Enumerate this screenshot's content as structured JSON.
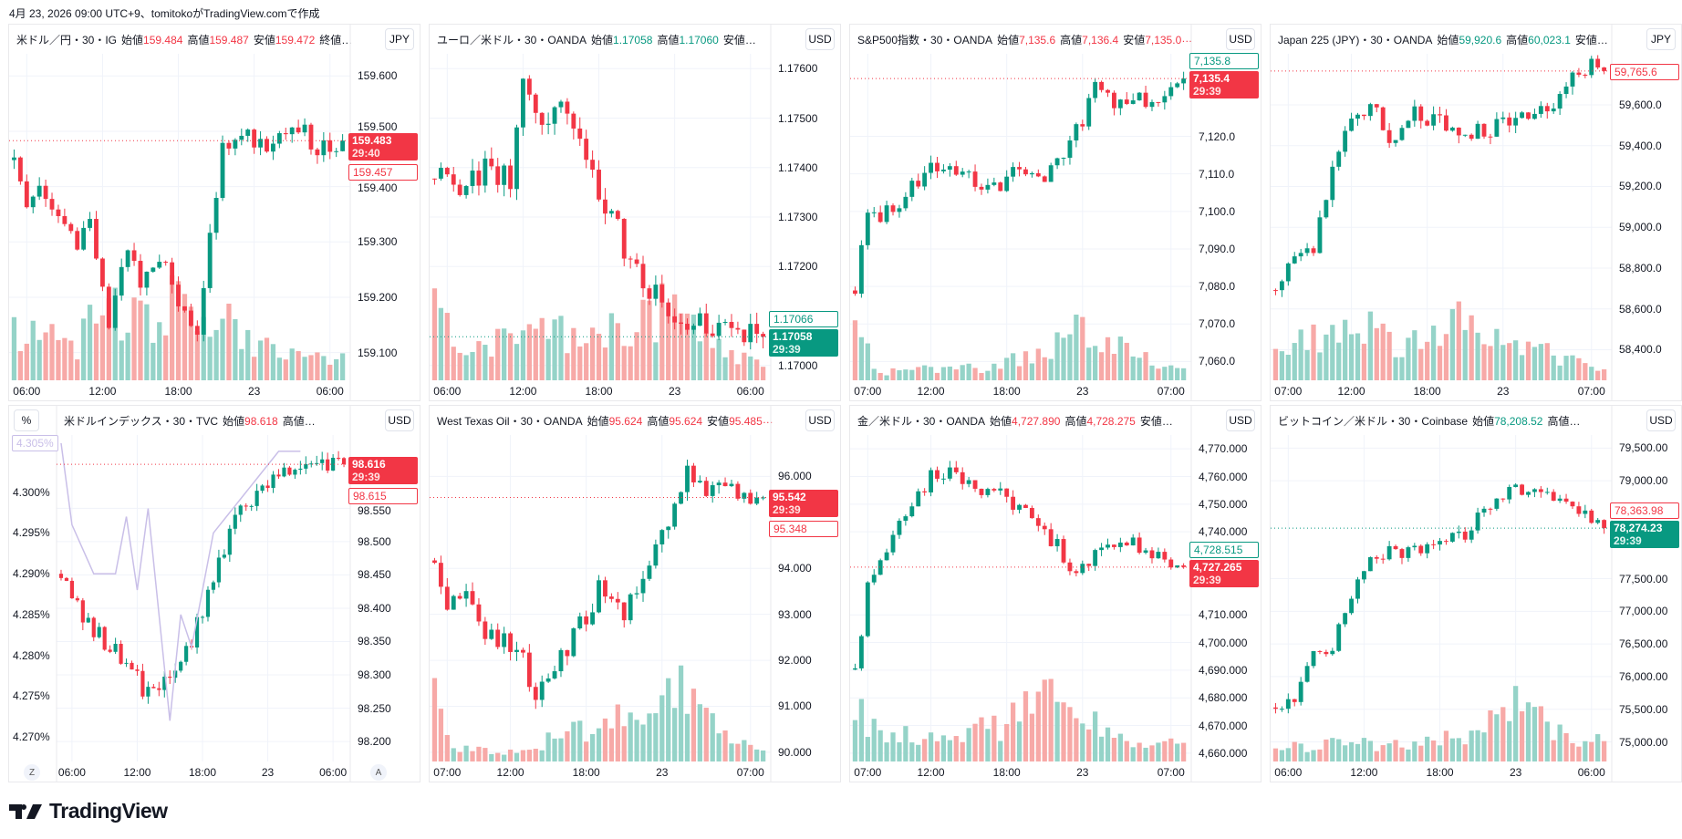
{
  "caption": "4月 23, 2026 09:00 UTC+9、tomitokoがTradingView.comで作成",
  "brand": "TradingView",
  "colors": {
    "up": "#089981",
    "down": "#F23645",
    "up_vol": "#95d3c8",
    "down_vol": "#f7a9a7",
    "pct_line": "#c9bfe8"
  },
  "charts": [
    {
      "title": "米ドル／円・30・IG",
      "ohlc": [
        {
          "l": "始値",
          "v": "159.484"
        },
        {
          "l": "高値",
          "v": "159.487"
        },
        {
          "l": "安値",
          "v": "159.472"
        }
      ],
      "trail": "終値…",
      "dir": "down",
      "currency": "JPY",
      "ylim": [
        159.05,
        159.64
      ],
      "yticks": [
        "159.600",
        "159.500",
        "159.400",
        "159.300",
        "159.200",
        "159.100"
      ],
      "xticks": [
        {
          "i": 2,
          "t": "06:00"
        },
        {
          "i": 14,
          "t": "12:00"
        },
        {
          "i": 26,
          "t": "18:00"
        },
        {
          "i": 38,
          "t": "23"
        },
        {
          "i": 50,
          "t": "06:00"
        }
      ],
      "waypoints": [
        [
          0,
          159.45
        ],
        [
          2,
          159.38
        ],
        [
          4,
          159.42
        ],
        [
          8,
          159.33
        ],
        [
          10,
          159.28
        ],
        [
          12,
          159.35
        ],
        [
          15,
          159.15
        ],
        [
          18,
          159.3
        ],
        [
          20,
          159.22
        ],
        [
          23,
          159.28
        ],
        [
          26,
          159.2
        ],
        [
          29,
          159.15
        ],
        [
          31,
          159.3
        ],
        [
          33,
          159.47
        ],
        [
          36,
          159.5
        ],
        [
          40,
          159.48
        ],
        [
          44,
          159.52
        ],
        [
          48,
          159.47
        ],
        [
          52,
          159.483
        ]
      ],
      "noise": 0.02,
      "volume_profile": [
        [
          0,
          0.6
        ],
        [
          10,
          0.4
        ],
        [
          14,
          0.9
        ],
        [
          20,
          0.7
        ],
        [
          26,
          0.9
        ],
        [
          30,
          0.8
        ],
        [
          40,
          0.4
        ],
        [
          52,
          0.3
        ]
      ],
      "last": {
        "value": "159.483",
        "timer": "29:40",
        "color": "down"
      },
      "other": {
        "value": "159.457",
        "color": "down"
      }
    },
    {
      "title": "ユーロ／米ドル・30・OANDA",
      "ohlc": [
        {
          "l": "始値",
          "v": "1.17058"
        },
        {
          "l": "高値",
          "v": "1.17060"
        }
      ],
      "trail": "安値…",
      "dir": "up",
      "currency": "USD",
      "ylim": [
        1.1697,
        1.1763
      ],
      "yticks": [
        "1.17600",
        "1.17500",
        "1.17400",
        "1.17300",
        "1.17200",
        "1.17000"
      ],
      "xticks": [
        {
          "i": 2,
          "t": "06:00"
        },
        {
          "i": 14,
          "t": "12:00"
        },
        {
          "i": 26,
          "t": "18:00"
        },
        {
          "i": 38,
          "t": "23"
        },
        {
          "i": 50,
          "t": "06:00"
        }
      ],
      "waypoints": [
        [
          0,
          1.174
        ],
        [
          3,
          1.1735
        ],
        [
          8,
          1.174
        ],
        [
          12,
          1.1737
        ],
        [
          14,
          1.1755
        ],
        [
          17,
          1.175
        ],
        [
          20,
          1.1752
        ],
        [
          24,
          1.1742
        ],
        [
          28,
          1.173
        ],
        [
          32,
          1.1718
        ],
        [
          36,
          1.1712
        ],
        [
          40,
          1.171
        ],
        [
          44,
          1.1708
        ],
        [
          48,
          1.1707
        ],
        [
          52,
          1.17058
        ]
      ],
      "noise": 0.0003,
      "volume_profile": [
        [
          0,
          0.9
        ],
        [
          4,
          0.3
        ],
        [
          14,
          0.5
        ],
        [
          26,
          0.6
        ],
        [
          36,
          0.8
        ],
        [
          44,
          0.4
        ],
        [
          52,
          0.2
        ]
      ],
      "last": {
        "value": "1.17058",
        "timer": "29:39",
        "color": "up"
      },
      "other": {
        "value": "1.17066",
        "color": "up"
      }
    },
    {
      "title": "S&P500指数・30・OANDA",
      "ohlc": [
        {
          "l": "始値",
          "v": "7,135.6"
        },
        {
          "l": "高値",
          "v": "7,136.4"
        },
        {
          "l": "安値",
          "v": "7,135.0"
        }
      ],
      "trail": "…",
      "dir": "down",
      "currency": "USD",
      "ylim": [
        7055,
        7142
      ],
      "yticks": [
        "7,120.0",
        "7,110.0",
        "7,100.0",
        "7,090.0",
        "7,080.0",
        "7,070.0",
        "7,060.0"
      ],
      "xticks": [
        {
          "i": 2,
          "t": "07:00"
        },
        {
          "i": 12,
          "t": "12:00"
        },
        {
          "i": 24,
          "t": "18:00"
        },
        {
          "i": 36,
          "t": "23"
        },
        {
          "i": 50,
          "t": "07:00"
        }
      ],
      "waypoints": [
        [
          0,
          7080
        ],
        [
          2,
          7098
        ],
        [
          6,
          7100
        ],
        [
          10,
          7108
        ],
        [
          14,
          7113
        ],
        [
          18,
          7110
        ],
        [
          22,
          7106
        ],
        [
          26,
          7112
        ],
        [
          30,
          7110
        ],
        [
          34,
          7117
        ],
        [
          38,
          7133
        ],
        [
          42,
          7128
        ],
        [
          46,
          7130
        ],
        [
          50,
          7133
        ],
        [
          52,
          7135.4
        ]
      ],
      "noise": 2.5,
      "volume_profile": [
        [
          0,
          0.8
        ],
        [
          3,
          0.1
        ],
        [
          20,
          0.15
        ],
        [
          30,
          0.3
        ],
        [
          35,
          0.8
        ],
        [
          40,
          0.4
        ],
        [
          52,
          0.15
        ]
      ],
      "last": {
        "value": "7,135.4",
        "timer": "29:39",
        "color": "down"
      },
      "other": {
        "value": "7,135.8",
        "color": "up"
      }
    },
    {
      "title": "Japan 225 (JPY)・30・OANDA",
      "ohlc": [
        {
          "l": "始値",
          "v": "59,920.6"
        },
        {
          "l": "高値",
          "v": "60,023.1"
        }
      ],
      "trail": "安値…",
      "dir": "up",
      "currency": "JPY",
      "ylim": [
        58250,
        59850
      ],
      "yticks": [
        "59,600.0",
        "59,400.0",
        "59,200.0",
        "59,000.0",
        "58,800.0",
        "58,600.0",
        "58,400.0"
      ],
      "xticks": [
        {
          "i": 2,
          "t": "07:00"
        },
        {
          "i": 12,
          "t": "12:00"
        },
        {
          "i": 24,
          "t": "18:00"
        },
        {
          "i": 36,
          "t": "23"
        },
        {
          "i": 50,
          "t": "07:00"
        }
      ],
      "waypoints": [
        [
          0,
          58700
        ],
        [
          3,
          58850
        ],
        [
          6,
          58900
        ],
        [
          9,
          59300
        ],
        [
          12,
          59550
        ],
        [
          16,
          59600
        ],
        [
          18,
          59400
        ],
        [
          22,
          59550
        ],
        [
          26,
          59500
        ],
        [
          30,
          59450
        ],
        [
          34,
          59480
        ],
        [
          38,
          59520
        ],
        [
          42,
          59560
        ],
        [
          46,
          59700
        ],
        [
          50,
          59780
        ],
        [
          52,
          59765.6
        ]
      ],
      "noise": 50,
      "volume_profile": [
        [
          0,
          0.4
        ],
        [
          8,
          0.5
        ],
        [
          14,
          0.6
        ],
        [
          20,
          0.4
        ],
        [
          30,
          0.7
        ],
        [
          36,
          0.5
        ],
        [
          44,
          0.3
        ],
        [
          52,
          0.1
        ]
      ],
      "last": null,
      "other": {
        "value": "59,765.6",
        "color": "down"
      }
    },
    {
      "title": "米ドルインデックス・30・TVC",
      "ohlc": [
        {
          "l": "始値",
          "v": "98.618"
        }
      ],
      "trail": "高値…",
      "dir": "down",
      "currency": "USD",
      "pct_button": "%",
      "ylim": [
        98.17,
        98.66
      ],
      "yticks": [
        "98.550",
        "98.500",
        "98.450",
        "98.400",
        "98.350",
        "98.300",
        "98.250",
        "98.200"
      ],
      "xticks": [
        {
          "i": 2,
          "t": "06:00"
        },
        {
          "i": 14,
          "t": "12:00"
        },
        {
          "i": 26,
          "t": "18:00"
        },
        {
          "i": 38,
          "t": "23"
        },
        {
          "i": 50,
          "t": "06:00"
        }
      ],
      "waypoints": [
        [
          0,
          98.45
        ],
        [
          3,
          98.4
        ],
        [
          8,
          98.35
        ],
        [
          12,
          98.32
        ],
        [
          16,
          98.27
        ],
        [
          20,
          98.3
        ],
        [
          24,
          98.35
        ],
        [
          28,
          98.45
        ],
        [
          32,
          98.53
        ],
        [
          36,
          98.57
        ],
        [
          40,
          98.6
        ],
        [
          44,
          98.6
        ],
        [
          48,
          98.61
        ],
        [
          52,
          98.616
        ]
      ],
      "noise": 0.015,
      "volume_profile": [],
      "pct": {
        "ylim": [
          4.267,
          4.307
        ],
        "yticks": [
          "4.300%",
          "4.295%",
          "4.290%",
          "4.285%",
          "4.280%",
          "4.275%",
          "4.270%"
        ],
        "label": "4.305%",
        "waypoints": [
          [
            0,
            4.306
          ],
          [
            2,
            4.296
          ],
          [
            6,
            4.29
          ],
          [
            10,
            4.29
          ],
          [
            12,
            4.297
          ],
          [
            14,
            4.288
          ],
          [
            16,
            4.298
          ],
          [
            18,
            4.285
          ],
          [
            20,
            4.272
          ],
          [
            22,
            4.285
          ],
          [
            24,
            4.281
          ],
          [
            28,
            4.295
          ],
          [
            34,
            4.3
          ],
          [
            40,
            4.305
          ],
          [
            44,
            4.305
          ]
        ]
      },
      "corner_left": "Z",
      "corner_right": "A",
      "last": {
        "value": "98.616",
        "timer": "29:39",
        "color": "down"
      },
      "other": {
        "value": "98.615",
        "color": "down"
      }
    },
    {
      "title": "West Texas Oil・30・OANDA",
      "ohlc": [
        {
          "l": "始値",
          "v": "95.624"
        },
        {
          "l": "高値",
          "v": "95.624"
        },
        {
          "l": "安値",
          "v": "95.485"
        }
      ],
      "trail": "…",
      "dir": "down",
      "currency": "USD",
      "ylim": [
        89.8,
        96.9
      ],
      "yticks": [
        "96.000",
        "94.000",
        "93.000",
        "92.000",
        "91.000",
        "90.000"
      ],
      "xticks": [
        {
          "i": 2,
          "t": "07:00"
        },
        {
          "i": 12,
          "t": "12:00"
        },
        {
          "i": 24,
          "t": "18:00"
        },
        {
          "i": 36,
          "t": "23"
        },
        {
          "i": 50,
          "t": "07:00"
        }
      ],
      "waypoints": [
        [
          0,
          94
        ],
        [
          2,
          93.2
        ],
        [
          5,
          93.6
        ],
        [
          8,
          92.5
        ],
        [
          12,
          92.3
        ],
        [
          14,
          92
        ],
        [
          16,
          91
        ],
        [
          18,
          91.6
        ],
        [
          22,
          92.5
        ],
        [
          26,
          93.5
        ],
        [
          30,
          93
        ],
        [
          34,
          94
        ],
        [
          38,
          95.2
        ],
        [
          40,
          96
        ],
        [
          43,
          95.8
        ],
        [
          47,
          95.6
        ],
        [
          52,
          95.542
        ]
      ],
      "noise": 0.25,
      "volume_profile": [
        [
          0,
          0.8
        ],
        [
          3,
          0.2
        ],
        [
          12,
          0.1
        ],
        [
          24,
          0.4
        ],
        [
          34,
          0.6
        ],
        [
          38,
          0.9
        ],
        [
          44,
          0.4
        ],
        [
          52,
          0.1
        ]
      ],
      "last": {
        "value": "95.542",
        "timer": "29:39",
        "color": "down"
      },
      "other": {
        "value": "95.348",
        "color": "down"
      }
    },
    {
      "title": "金／米ドル・30・OANDA",
      "ohlc": [
        {
          "l": "始値",
          "v": "4,727.890"
        },
        {
          "l": "高値",
          "v": "4,728.275"
        }
      ],
      "trail": "安値…",
      "dir": "down",
      "currency": "USD",
      "ylim": [
        4657,
        4775
      ],
      "yticks": [
        "4,770.000",
        "4,760.000",
        "4,750.000",
        "4,740.000",
        "4,710.000",
        "4,700.000",
        "4,690.000",
        "4,680.000",
        "4,670.000",
        "4,660.000"
      ],
      "xticks": [
        {
          "i": 2,
          "t": "07:00"
        },
        {
          "i": 12,
          "t": "12:00"
        },
        {
          "i": 24,
          "t": "18:00"
        },
        {
          "i": 36,
          "t": "23"
        },
        {
          "i": 50,
          "t": "07:00"
        }
      ],
      "waypoints": [
        [
          0,
          4690
        ],
        [
          2,
          4720
        ],
        [
          5,
          4735
        ],
        [
          8,
          4745
        ],
        [
          12,
          4760
        ],
        [
          16,
          4762
        ],
        [
          20,
          4755
        ],
        [
          24,
          4752
        ],
        [
          28,
          4745
        ],
        [
          32,
          4735
        ],
        [
          34,
          4725
        ],
        [
          36,
          4728
        ],
        [
          40,
          4738
        ],
        [
          44,
          4735
        ],
        [
          48,
          4732
        ],
        [
          52,
          4727.3
        ]
      ],
      "noise": 3,
      "volume_profile": [
        [
          0,
          0.7
        ],
        [
          4,
          0.3
        ],
        [
          14,
          0.3
        ],
        [
          24,
          0.4
        ],
        [
          30,
          0.9
        ],
        [
          36,
          0.5
        ],
        [
          44,
          0.2
        ],
        [
          52,
          0.2
        ]
      ],
      "last": {
        "value": "4,727.265",
        "timer": "29:39",
        "color": "down"
      },
      "other": {
        "value": "4,728.515",
        "color": "up"
      }
    },
    {
      "title": "ビットコイン／米ドル・30・Coinbase",
      "ohlc": [
        {
          "l": "始値",
          "v": "78,208.52"
        }
      ],
      "trail": "高値…",
      "dir": "up",
      "currency": "USD",
      "ylim": [
        74700,
        79700
      ],
      "yticks": [
        "79,500.00",
        "79,000.00",
        "77,500.00",
        "77,000.00",
        "76,500.00",
        "76,000.00",
        "75,500.00",
        "75,000.00"
      ],
      "xticks": [
        {
          "i": 2,
          "t": "06:00"
        },
        {
          "i": 14,
          "t": "12:00"
        },
        {
          "i": 26,
          "t": "18:00"
        },
        {
          "i": 38,
          "t": "23"
        },
        {
          "i": 50,
          "t": "06:00"
        }
      ],
      "waypoints": [
        [
          0,
          75400
        ],
        [
          3,
          75700
        ],
        [
          6,
          76300
        ],
        [
          9,
          76500
        ],
        [
          12,
          77300
        ],
        [
          15,
          77800
        ],
        [
          18,
          77900
        ],
        [
          22,
          77900
        ],
        [
          26,
          78000
        ],
        [
          30,
          78200
        ],
        [
          34,
          78600
        ],
        [
          38,
          78900
        ],
        [
          42,
          78800
        ],
        [
          46,
          78600
        ],
        [
          50,
          78400
        ],
        [
          52,
          78274
        ]
      ],
      "noise": 120,
      "volume_profile": [
        [
          0,
          0.2
        ],
        [
          10,
          0.2
        ],
        [
          20,
          0.2
        ],
        [
          30,
          0.3
        ],
        [
          36,
          0.7
        ],
        [
          44,
          0.4
        ],
        [
          52,
          0.2
        ]
      ],
      "last": {
        "value": "78,274.23",
        "timer": "29:39",
        "color": "up"
      },
      "other": {
        "value": "78,363.98",
        "color": "down"
      }
    }
  ]
}
